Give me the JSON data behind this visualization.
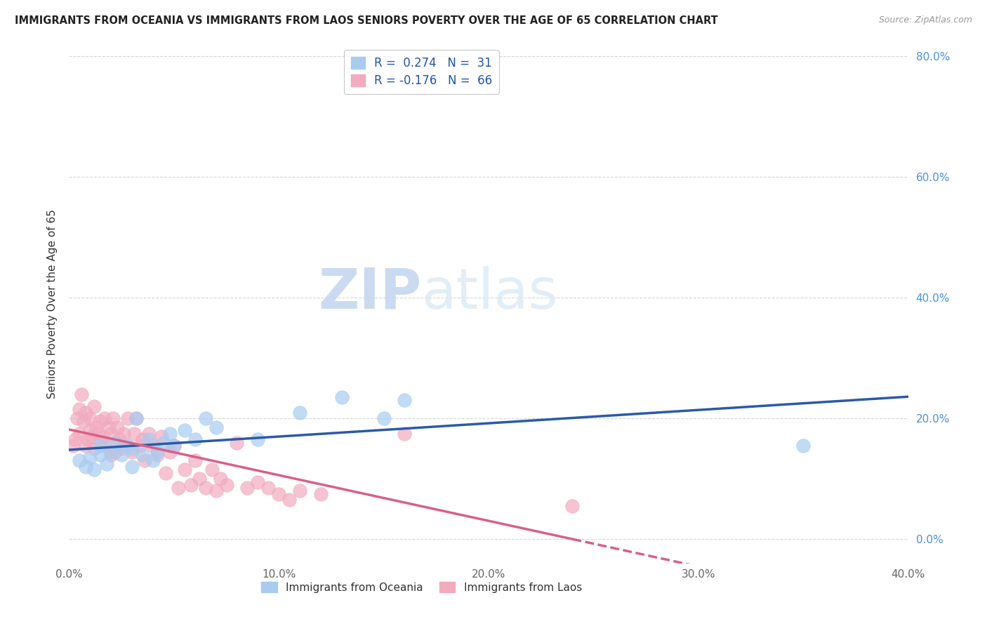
{
  "title": "IMMIGRANTS FROM OCEANIA VS IMMIGRANTS FROM LAOS SENIORS POVERTY OVER THE AGE OF 65 CORRELATION CHART",
  "source": "Source: ZipAtlas.com",
  "ylabel": "Seniors Poverty Over the Age of 65",
  "xlabel_ticks": [
    "0.0%",
    "",
    "10.0%",
    "",
    "20.0%",
    "",
    "30.0%",
    "",
    "40.0%"
  ],
  "xlabel_vals": [
    0.0,
    0.05,
    0.1,
    0.15,
    0.2,
    0.25,
    0.3,
    0.35,
    0.4
  ],
  "ylabel_ticks": [
    "0.0%",
    "20.0%",
    "40.0%",
    "60.0%",
    "80.0%"
  ],
  "ylabel_vals": [
    0.0,
    0.2,
    0.4,
    0.6,
    0.8
  ],
  "xlim": [
    0.0,
    0.4
  ],
  "ylim": [
    -0.05,
    0.8
  ],
  "legend_oceania": "R =  0.274   N =  31",
  "legend_laos": "R = -0.176   N =  66",
  "oceania_color": "#A8CCF0",
  "laos_color": "#F2AABF",
  "oceania_line_color": "#2B5AA8",
  "laos_line_color": "#D95F8A",
  "watermark_zip": "ZIP",
  "watermark_atlas": "atlas",
  "oceania_scatter_x": [
    0.005,
    0.008,
    0.01,
    0.012,
    0.015,
    0.015,
    0.018,
    0.02,
    0.022,
    0.025,
    0.028,
    0.03,
    0.03,
    0.032,
    0.035,
    0.038,
    0.04,
    0.042,
    0.045,
    0.048,
    0.05,
    0.055,
    0.06,
    0.065,
    0.07,
    0.09,
    0.11,
    0.13,
    0.15,
    0.16,
    0.35
  ],
  "oceania_scatter_y": [
    0.13,
    0.12,
    0.135,
    0.115,
    0.14,
    0.155,
    0.125,
    0.145,
    0.16,
    0.14,
    0.155,
    0.12,
    0.15,
    0.2,
    0.14,
    0.165,
    0.13,
    0.145,
    0.16,
    0.175,
    0.155,
    0.18,
    0.165,
    0.2,
    0.185,
    0.165,
    0.21,
    0.235,
    0.2,
    0.23,
    0.155
  ],
  "laos_scatter_x": [
    0.002,
    0.003,
    0.004,
    0.005,
    0.005,
    0.006,
    0.007,
    0.008,
    0.008,
    0.009,
    0.01,
    0.01,
    0.011,
    0.012,
    0.012,
    0.013,
    0.014,
    0.015,
    0.015,
    0.016,
    0.017,
    0.018,
    0.019,
    0.02,
    0.02,
    0.021,
    0.022,
    0.023,
    0.024,
    0.025,
    0.026,
    0.027,
    0.028,
    0.03,
    0.031,
    0.032,
    0.034,
    0.035,
    0.036,
    0.038,
    0.04,
    0.042,
    0.044,
    0.046,
    0.048,
    0.05,
    0.052,
    0.055,
    0.058,
    0.06,
    0.062,
    0.065,
    0.068,
    0.07,
    0.072,
    0.075,
    0.08,
    0.085,
    0.09,
    0.095,
    0.1,
    0.105,
    0.11,
    0.12,
    0.16,
    0.24
  ],
  "laos_scatter_y": [
    0.155,
    0.165,
    0.2,
    0.215,
    0.175,
    0.24,
    0.195,
    0.21,
    0.155,
    0.165,
    0.18,
    0.2,
    0.17,
    0.15,
    0.22,
    0.185,
    0.175,
    0.16,
    0.195,
    0.17,
    0.2,
    0.155,
    0.185,
    0.14,
    0.175,
    0.2,
    0.145,
    0.185,
    0.165,
    0.15,
    0.175,
    0.155,
    0.2,
    0.145,
    0.175,
    0.2,
    0.155,
    0.165,
    0.13,
    0.175,
    0.155,
    0.14,
    0.17,
    0.11,
    0.145,
    0.155,
    0.085,
    0.115,
    0.09,
    0.13,
    0.1,
    0.085,
    0.115,
    0.08,
    0.1,
    0.09,
    0.16,
    0.085,
    0.095,
    0.085,
    0.075,
    0.065,
    0.08,
    0.075,
    0.175,
    0.055
  ],
  "background_color": "#FFFFFF",
  "grid_color": "#CCCCCC"
}
